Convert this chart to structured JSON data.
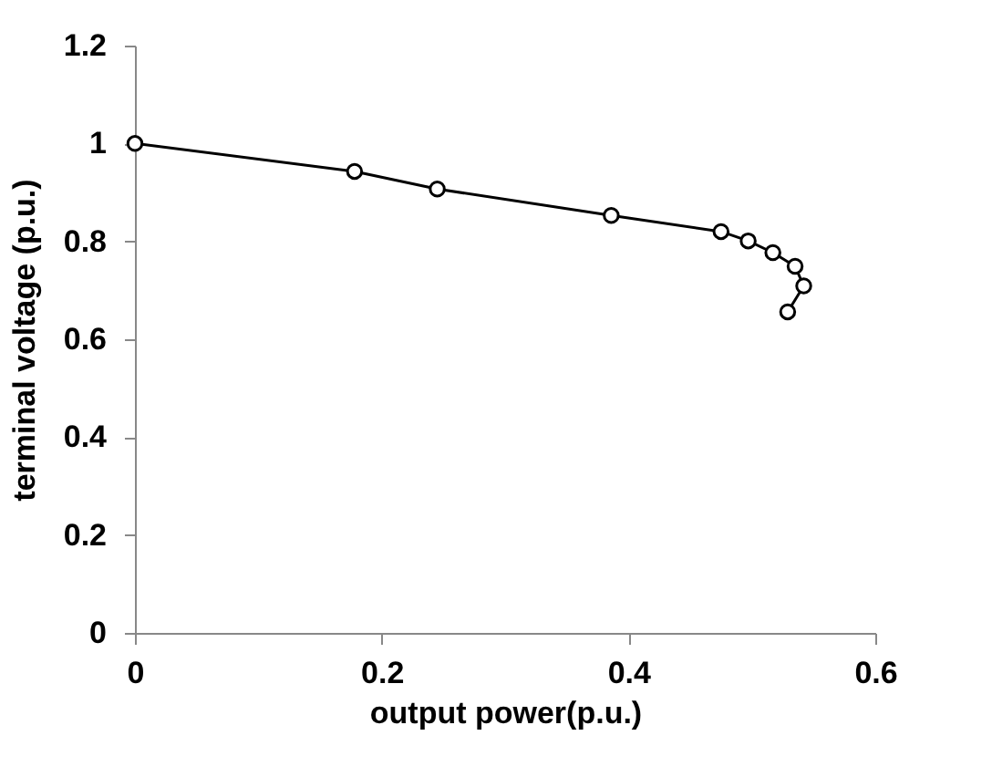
{
  "chart_data": {
    "type": "line",
    "xlabel": "output power(p.u.)",
    "ylabel": "terminal voltage (p.u.)",
    "x": [
      0,
      0.178,
      0.245,
      0.386,
      0.475,
      0.497,
      0.517,
      0.535,
      0.542,
      0.529
    ],
    "series": [
      {
        "color": "#000000",
        "values": [
          1.0,
          0.943,
          0.907,
          0.853,
          0.82,
          0.801,
          0.777,
          0.749,
          0.709,
          0.656
        ]
      }
    ],
    "xlim": [
      0,
      0.6
    ],
    "xticks": [
      0,
      0.2,
      0.4,
      0.6
    ],
    "ylim": [
      0,
      1.2
    ],
    "yticks": [
      0,
      0.2,
      0.4,
      0.6,
      0.8,
      1,
      1.2
    ],
    "marker": "circle",
    "grid": false,
    "legend": false
  }
}
